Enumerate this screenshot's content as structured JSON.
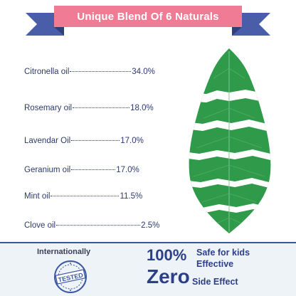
{
  "banner": {
    "title": "Unique Blend Of 6 Naturals",
    "ribbon_color": "#ef7b95",
    "tail_color": "#4a5da8"
  },
  "oils": [
    {
      "name": "Citronella oil",
      "value": "34.0%"
    },
    {
      "name": "Rosemary oil",
      "value": "18.0%"
    },
    {
      "name": "Lavendar Oil",
      "value": "17.0%"
    },
    {
      "name": "Geranium oil",
      "value": "17.0%"
    },
    {
      "name": "Mint oil",
      "value": "11.5%"
    },
    {
      "name": "Clove oil",
      "value": "2.5%"
    }
  ],
  "leaf": {
    "color": "#2e9a4a",
    "stripe_color": "#ffffff"
  },
  "footer": {
    "internationally": "Internationally",
    "stamp_text": "TESTED",
    "stat1_big": "100%",
    "stat1_line1": "Safe for kids",
    "stat1_line2": "Effective",
    "stat2_big": "Zero",
    "stat2_line": "Side Effect",
    "text_color": "#2d3f88"
  }
}
